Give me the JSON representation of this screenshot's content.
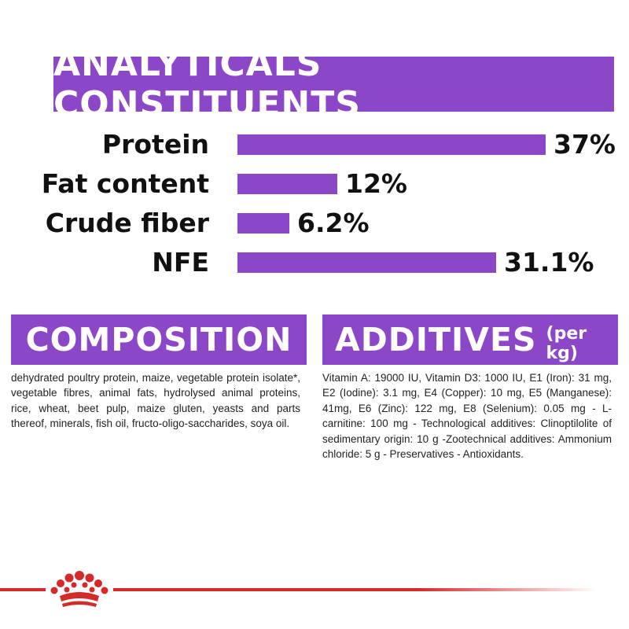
{
  "analytics": {
    "title": "ANALYTICALS CONSTITUENTS",
    "rows": [
      {
        "label": "Protein",
        "value": 37,
        "display": "37%"
      },
      {
        "label": "Fat content",
        "value": 12,
        "display": "12%"
      },
      {
        "label": "Crude fiber",
        "value": 6.2,
        "display": "6.2%"
      },
      {
        "label": "NFE",
        "value": 31.1,
        "display": "31.1%"
      }
    ]
  },
  "composition": {
    "title": "COMPOSITION",
    "text": "dehydrated poultry protein, maize, vegetable protein isolate*, vegetable fibres, animal fats, hydrolysed animal proteins, rice, wheat, beet pulp, maize gluten, yeasts and parts thereof, minerals, fish oil, fructo-oligo-saccharides, soya oil."
  },
  "additives": {
    "title": "ADDITIVES",
    "subtitle": "(per kg)",
    "text": "Vitamin A: 19000 IU, Vitamin D3: 1000 IU, E1 (Iron): 31 mg, E2 (Iodine): 3.1 mg, E4 (Copper): 10 mg, E5 (Manganese): 41mg, E6 (Zinc): 122 mg, E8 (Selenium): 0.05 mg - L- carnitine: 100 mg - Technological additives: Clinoptilolite of sedimentary origin: 10 g -Zootechnical additives: Ammonium chloride: 5 g - Preservatives - Antioxidants."
  },
  "footer": {
    "logo_icon": "crown-logo-icon",
    "accent": "#d62a2a"
  },
  "colors": {
    "accent": "#8b47c8"
  }
}
